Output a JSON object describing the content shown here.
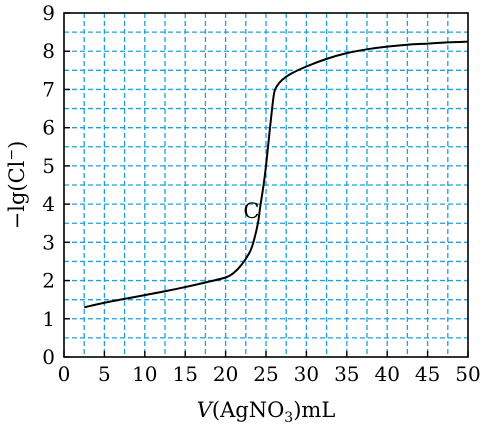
{
  "chart_data": {
    "type": "line",
    "xlabel": {
      "italic": "V",
      "main": "(AgNO",
      "sub": "3",
      "tail": ")mL"
    },
    "ylabel": {
      "main": "−lg(Cl",
      "sup": "−",
      "tail": ")"
    },
    "xlim": [
      0,
      50
    ],
    "ylim": [
      0,
      9
    ],
    "x_ticks": [
      "0",
      "5",
      "10",
      "15",
      "20",
      "25",
      "30",
      "35",
      "40",
      "45",
      "50"
    ],
    "y_ticks": [
      "0",
      "1",
      "2",
      "3",
      "4",
      "5",
      "6",
      "7",
      "8",
      "9"
    ],
    "grid": {
      "style": "dashed",
      "color": "#1ea0dc",
      "x_step": 2.5,
      "y_step": 0.5
    },
    "background": "#ffffff",
    "annotations": [
      {
        "text": "C",
        "x": 23.2,
        "y": 3.85
      }
    ],
    "series": [
      {
        "color": "#000000",
        "x": [
          2.5,
          5,
          7.5,
          10,
          12.5,
          15,
          17.5,
          20,
          21,
          22,
          23,
          23.5,
          24,
          24.3,
          24.7,
          25,
          25.3,
          25.6,
          26,
          26.4,
          27,
          28,
          30,
          32.5,
          35,
          37.5,
          40,
          42.5,
          45,
          47.5,
          50
        ],
        "y": [
          1.3,
          1.42,
          1.52,
          1.62,
          1.72,
          1.83,
          1.95,
          2.08,
          2.2,
          2.42,
          2.75,
          3.05,
          3.5,
          3.95,
          4.5,
          5.0,
          5.6,
          6.2,
          6.9,
          7.1,
          7.25,
          7.4,
          7.6,
          7.8,
          7.95,
          8.05,
          8.12,
          8.17,
          8.2,
          8.23,
          8.25
        ]
      }
    ]
  }
}
